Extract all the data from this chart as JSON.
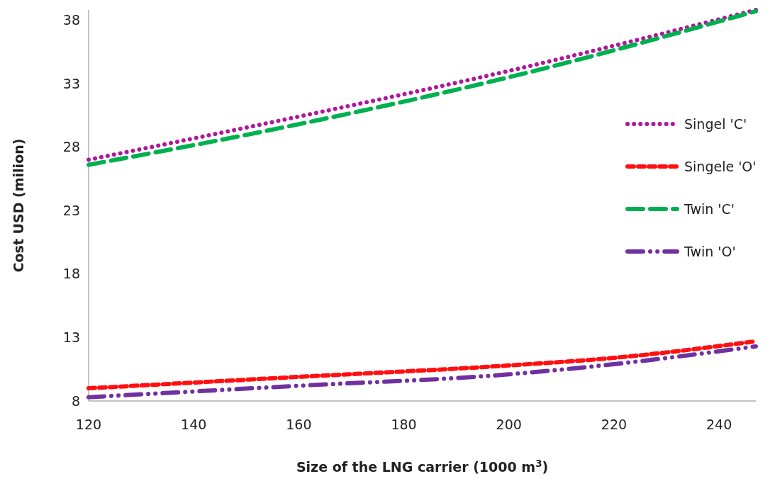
{
  "chart_data": {
    "type": "line",
    "xlabel": "Size of the LNG carrier (1000 m$^{3}$)",
    "ylabel": "Cost  USD (milion)",
    "xlim": [
      120,
      247
    ],
    "xticks": [
      120,
      140,
      160,
      180,
      200,
      220,
      240
    ],
    "ylim": [
      8,
      38.8
    ],
    "yticks": [
      8,
      13,
      18,
      23,
      28,
      33,
      38
    ],
    "grid": false,
    "legend": "right",
    "series": [
      {
        "name": "Singel 'C'",
        "color": "#b0169e",
        "line_style": "dotted",
        "x": [
          120,
          160,
          200,
          247
        ],
        "values": [
          27.0,
          30.4,
          34.0,
          38.8
        ]
      },
      {
        "name": "Singele 'O'",
        "color": "#ff1010",
        "line_style": "dashed",
        "x": [
          120,
          160,
          200,
          220,
          247
        ],
        "values": [
          9.0,
          9.9,
          10.8,
          11.4,
          12.7
        ]
      },
      {
        "name": "Twin 'C'",
        "color": "#00b050",
        "line_style": "longdash",
        "x": [
          120,
          160,
          200,
          247
        ],
        "values": [
          26.6,
          29.8,
          33.5,
          38.7
        ]
      },
      {
        "name": "Twin 'O'",
        "color": "#7030a0",
        "line_style": "dashdot",
        "x": [
          120,
          160,
          200,
          220,
          247
        ],
        "values": [
          8.3,
          9.2,
          10.1,
          10.9,
          12.3
        ]
      }
    ]
  }
}
